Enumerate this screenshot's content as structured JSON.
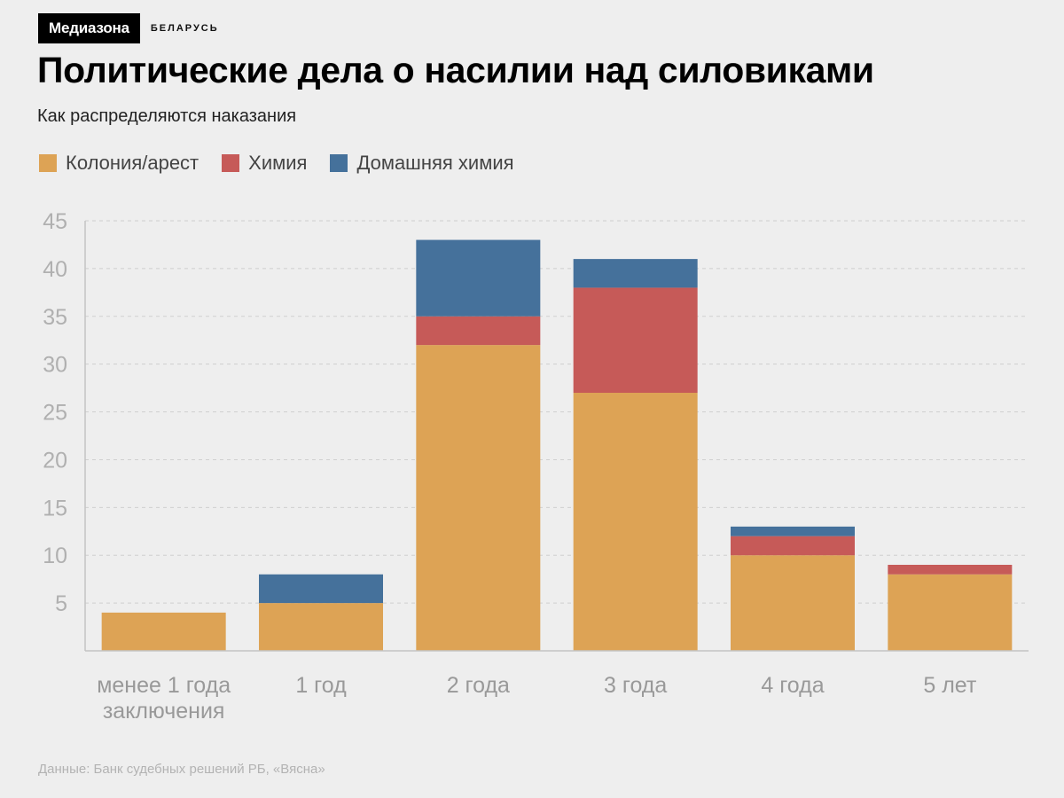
{
  "brand": {
    "logo": "Медиазона",
    "region": "БЕЛАРУСЬ"
  },
  "header": {
    "title": "Политические дела о насилии над силовиками",
    "subtitle": "Как распределяются наказания"
  },
  "source": "Данные: Банк судебных решений РБ, «Вясна»",
  "chart_data": {
    "type": "bar",
    "stacked": true,
    "title": "Политические дела о насилии над силовиками",
    "subtitle": "Как распределяются наказания",
    "xlabel": "",
    "ylabel": "",
    "ylim": [
      0,
      45
    ],
    "yticks": [
      5,
      10,
      15,
      20,
      25,
      30,
      35,
      40,
      45
    ],
    "grid": true,
    "legend_position": "top-left",
    "categories": [
      [
        "менее 1 года",
        "заключения"
      ],
      [
        "1 год"
      ],
      [
        "2 года"
      ],
      [
        "3 года"
      ],
      [
        "4 года"
      ],
      [
        "5 лет"
      ]
    ],
    "series": [
      {
        "name": "Колония/арест",
        "color": "#dda355",
        "values": [
          4,
          5,
          32,
          27,
          10,
          8
        ]
      },
      {
        "name": "Химия",
        "color": "#c65a58",
        "values": [
          0,
          0,
          3,
          11,
          2,
          1
        ]
      },
      {
        "name": "Домашняя химия",
        "color": "#45719b",
        "values": [
          0,
          3,
          8,
          3,
          1,
          0
        ]
      }
    ]
  }
}
